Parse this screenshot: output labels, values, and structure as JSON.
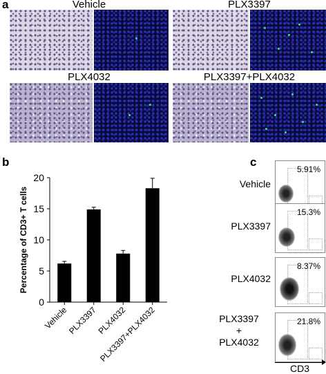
{
  "panel_a": {
    "letter": "a",
    "conditions": [
      "Vehicle",
      "PLX3397",
      "PLX4032",
      "PLX3397+PLX4032"
    ]
  },
  "panel_b": {
    "letter": "b",
    "chart_data": {
      "type": "bar",
      "categories": [
        "Vehicle",
        "PLX3397",
        "PLX4032",
        "PLX3397+PLX4032"
      ],
      "values": [
        6.2,
        14.9,
        7.8,
        18.3
      ],
      "errors": [
        0.35,
        0.35,
        0.5,
        1.6
      ],
      "title": "",
      "xlabel": "",
      "ylabel": "Percentage of CD3+ T cells",
      "ylim": [
        0,
        20
      ],
      "yticks": [
        0,
        5,
        10,
        15,
        20
      ],
      "bar_color": "#000000"
    }
  },
  "panel_c": {
    "letter": "c",
    "rows": [
      {
        "label": "Vehicle",
        "percent": "5.91%"
      },
      {
        "label": "PLX3397",
        "percent": "15.3%"
      },
      {
        "label": "PLX4032",
        "percent": "8.37%"
      },
      {
        "label_lines": [
          "PLX3397",
          "+",
          "PLX4032"
        ],
        "percent": "21.8%"
      }
    ],
    "x_axis_label": "CD3"
  }
}
